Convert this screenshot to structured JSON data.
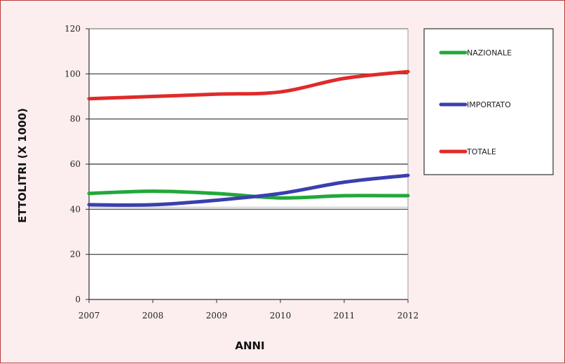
{
  "chart_data": {
    "type": "line",
    "title": "",
    "xlabel": "ANNI",
    "ylabel": "ETTOLITRI (X 1000)",
    "x": [
      2007,
      2008,
      2009,
      2010,
      2011,
      2012
    ],
    "x_tick_labels": [
      "2007",
      "2008",
      "2009",
      "2010",
      "2011",
      "2012"
    ],
    "ylim": [
      0,
      120
    ],
    "y_ticks": [
      0,
      20,
      40,
      60,
      80,
      100,
      120
    ],
    "grid": "horizontal",
    "legend_position": "right",
    "series": [
      {
        "name": "NAZIONALE",
        "color": "#22a83a",
        "values": [
          47,
          48,
          47,
          45,
          46,
          46
        ]
      },
      {
        "name": "IMPORTATO",
        "color": "#3a3fb0",
        "values": [
          42,
          42,
          44,
          47,
          52,
          55
        ]
      },
      {
        "name": "TOTALE",
        "color": "#e02a2a",
        "values": [
          89,
          90,
          91,
          92,
          98,
          101
        ]
      }
    ]
  }
}
